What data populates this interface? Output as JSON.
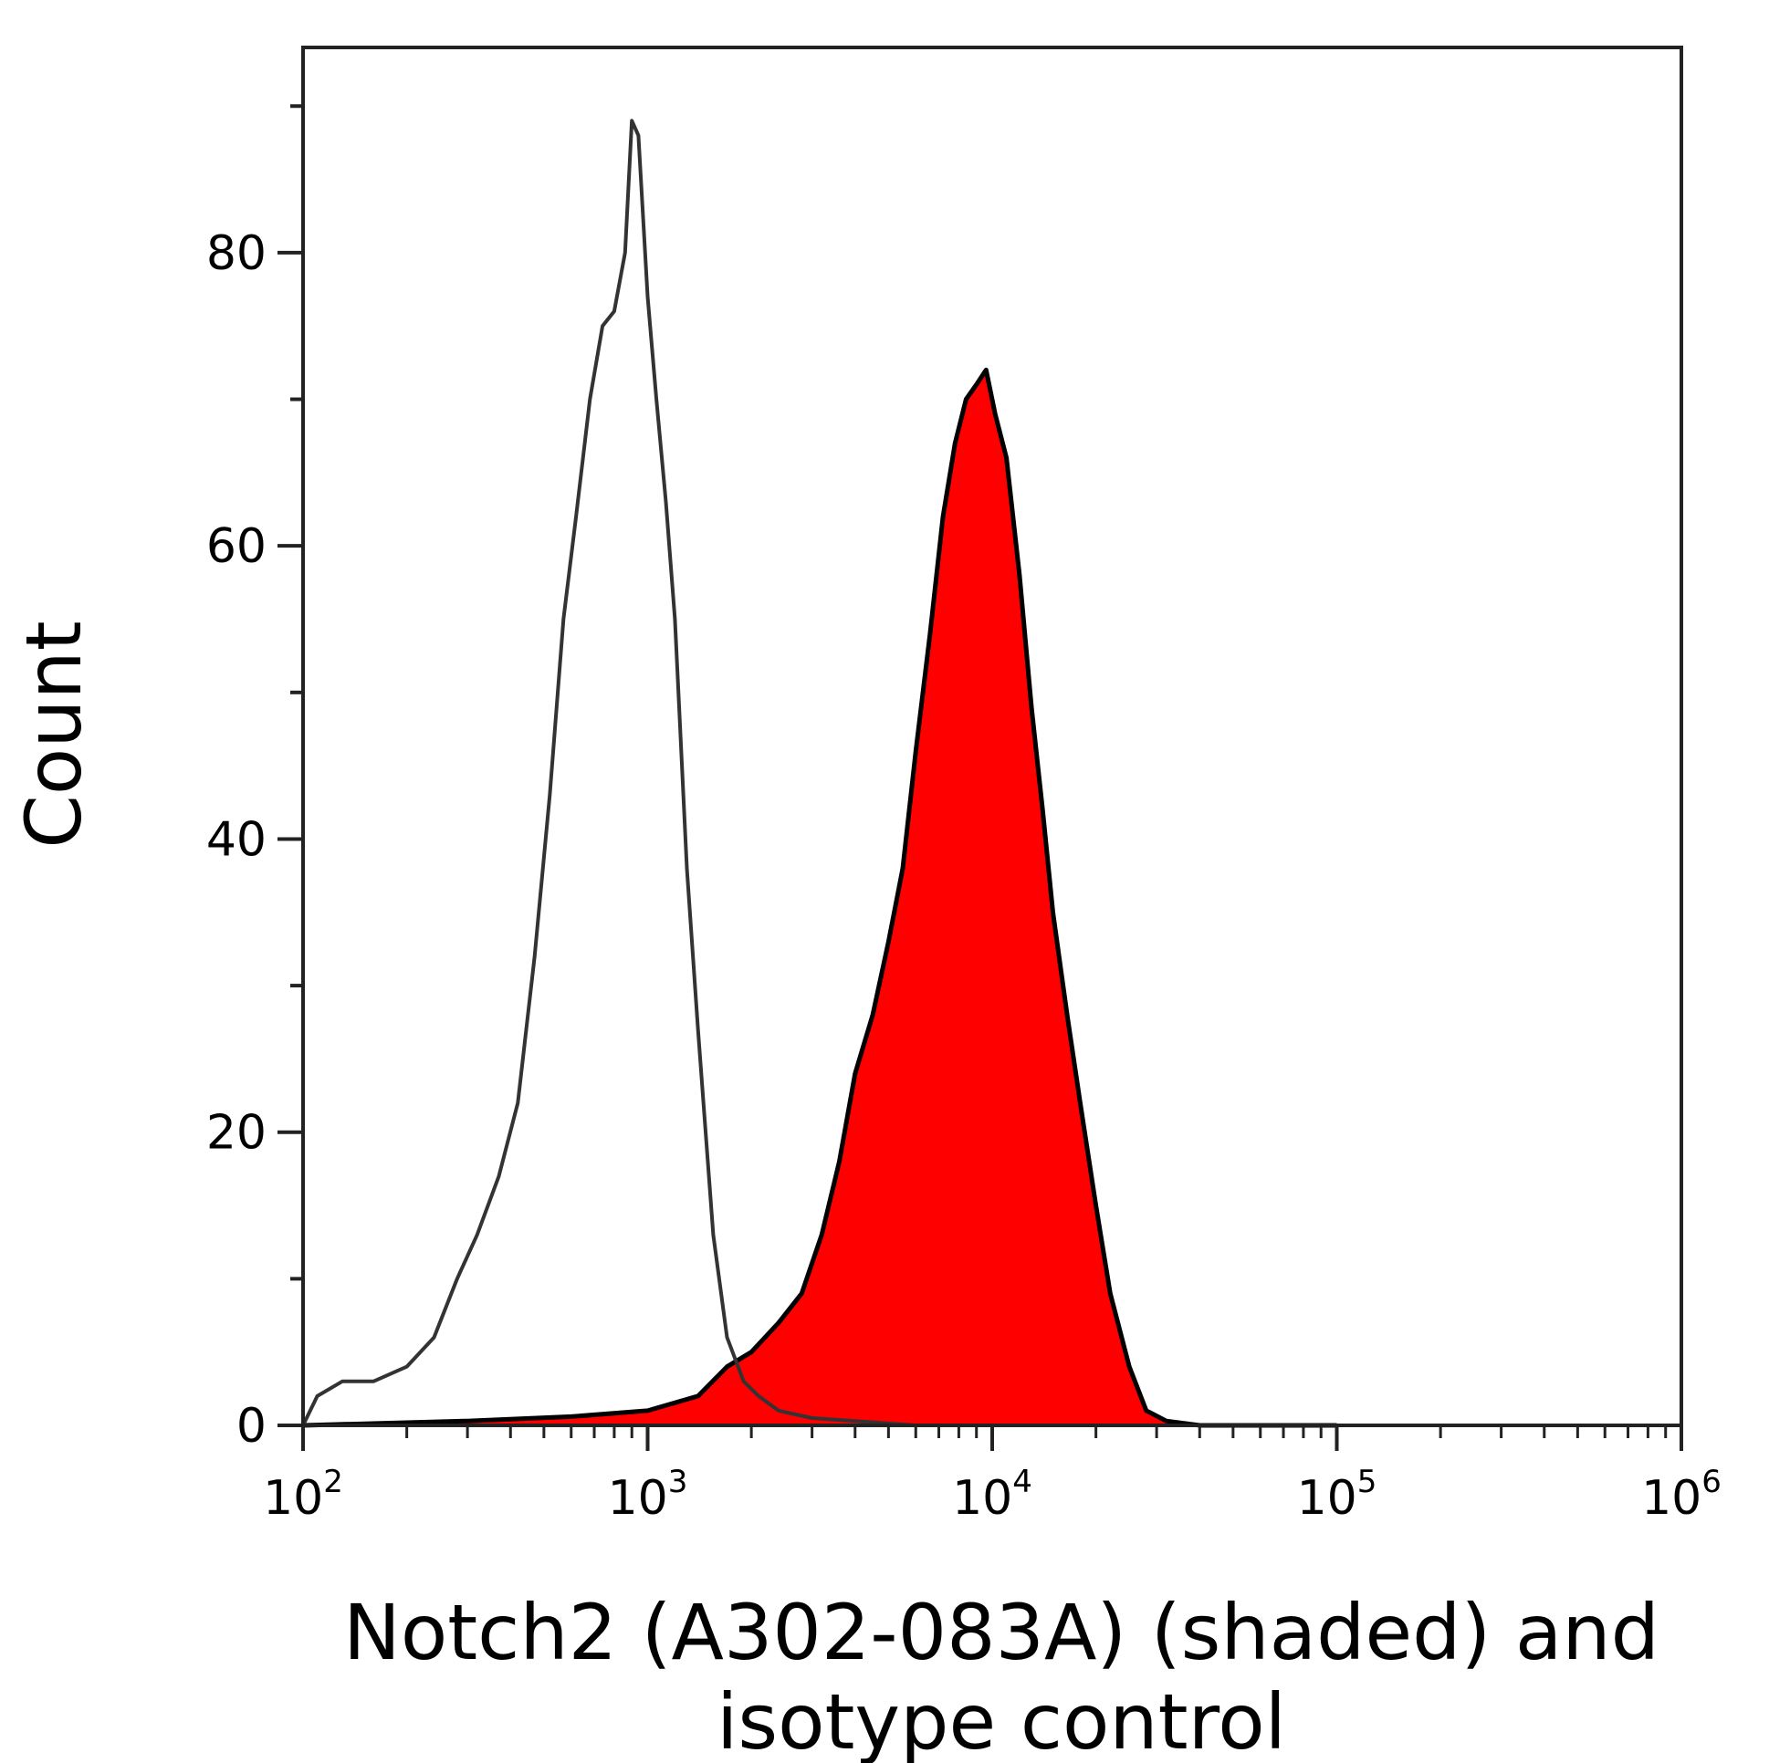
{
  "chart_data": {
    "type": "area",
    "xlabel": "Notch2 (A302-083A) (shaded) and",
    "xlabel_line2": "isotype control",
    "ylabel": "Count",
    "x_scale": "log",
    "xlim": [
      100,
      1000000
    ],
    "ylim": [
      0,
      94
    ],
    "x_ticks": [
      {
        "base": "10",
        "exp": "2",
        "value": 100
      },
      {
        "base": "10",
        "exp": "3",
        "value": 1000
      },
      {
        "base": "10",
        "exp": "4",
        "value": 10000
      },
      {
        "base": "10",
        "exp": "5",
        "value": 100000
      },
      {
        "base": "10",
        "exp": "6",
        "value": 1000000
      }
    ],
    "y_ticks": [
      {
        "label": "0",
        "value": 0
      },
      {
        "label": "20",
        "value": 20
      },
      {
        "label": "40",
        "value": 40
      },
      {
        "label": "60",
        "value": 60
      },
      {
        "label": "80",
        "value": 80
      }
    ],
    "grid": false,
    "series": [
      {
        "style": "outline",
        "color": "#333333",
        "x": [
          100,
          110,
          130,
          160,
          200,
          240,
          280,
          320,
          370,
          420,
          470,
          520,
          570,
          620,
          680,
          740,
          800,
          860,
          900,
          940,
          1000,
          1060,
          1130,
          1200,
          1300,
          1400,
          1550,
          1700,
          1900,
          2100,
          2400,
          3000,
          4000,
          6000,
          10000
        ],
        "y": [
          0,
          2,
          3,
          3,
          4,
          6,
          10,
          13,
          17,
          22,
          32,
          43,
          55,
          62,
          70,
          75,
          76,
          80,
          89,
          88,
          77,
          70,
          63,
          55,
          38,
          27,
          13,
          6,
          3,
          2,
          1,
          0.5,
          0.3,
          0,
          0
        ]
      },
      {
        "style": "filled",
        "color": "#ff0000",
        "edge_color": "#000000",
        "x": [
          100,
          300,
          600,
          1000,
          1400,
          1700,
          2000,
          2400,
          2800,
          3200,
          3600,
          4000,
          4500,
          5000,
          5500,
          6000,
          6600,
          7200,
          7800,
          8400,
          9000,
          9600,
          10200,
          11000,
          12000,
          13000,
          14000,
          15000,
          16500,
          18000,
          20000,
          22000,
          25000,
          28000,
          32000,
          40000,
          100000
        ],
        "y": [
          0,
          0.3,
          0.6,
          1,
          2,
          4,
          5,
          7,
          9,
          13,
          18,
          24,
          28,
          33,
          38,
          46,
          54,
          62,
          67,
          70,
          71,
          72,
          69,
          66,
          58,
          49,
          42,
          35,
          28,
          22,
          15,
          9,
          4,
          1,
          0.3,
          0,
          0
        ]
      }
    ]
  }
}
